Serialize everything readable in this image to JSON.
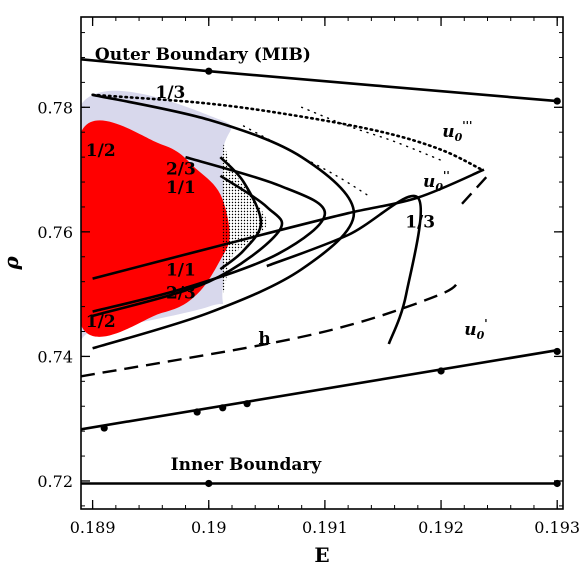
{
  "chart_data": {
    "type": "line",
    "xlabel": "E",
    "ylabel": "ρ",
    "xlim": [
      0.1889,
      0.19305
    ],
    "ylim": [
      0.7155,
      0.7945
    ],
    "x_ticks": [
      0.189,
      0.19,
      0.191,
      0.192,
      0.193
    ],
    "x_tick_labels": [
      "0.189",
      "0.19",
      "0.191",
      "0.192",
      "0.193"
    ],
    "y_ticks": [
      0.72,
      0.74,
      0.76,
      0.78
    ],
    "y_tick_labels": [
      "0.72",
      "0.74",
      "0.76",
      "0.78"
    ],
    "grid": false,
    "colors": {
      "red_region": "#ff0000",
      "lavender_region": "#d8d8ec",
      "lines": "#000000"
    },
    "regions": [
      {
        "name": "lavender",
        "x": [
          0.1889,
          0.1901,
          0.19012,
          0.19012,
          0.19,
          0.189,
          0.1889
        ],
        "y": [
          0.7804,
          0.778,
          0.772,
          0.751,
          0.748,
          0.744,
          0.744
        ]
      },
      {
        "name": "red",
        "x": [
          0.1889,
          0.1896,
          0.1899,
          0.1901,
          0.19018,
          0.1901,
          0.1899,
          0.1896,
          0.1889
        ],
        "y": [
          0.776,
          0.774,
          0.77,
          0.766,
          0.7595,
          0.7555,
          0.75,
          0.747,
          0.745
        ]
      },
      {
        "name": "dotted-region",
        "x": [
          0.19012,
          0.1902,
          0.1904,
          0.1905,
          0.1904,
          0.1902,
          0.19012
        ],
        "y": [
          0.773,
          0.77,
          0.765,
          0.7615,
          0.759,
          0.756,
          0.751
        ]
      }
    ],
    "series": [
      {
        "x": [
          0.1889,
          0.19,
          0.193
        ],
        "y": [
          0.7877,
          0.7858,
          0.781
        ],
        "style": "solid",
        "markers": [
          [
            0.19,
            0.7858
          ],
          [
            0.193,
            0.781
          ]
        ]
      },
      {
        "x": [
          0.1889,
          0.193
        ],
        "y": [
          0.7196,
          0.7196
        ],
        "style": "solid",
        "markers": [
          [
            0.19,
            0.7196
          ],
          [
            0.193,
            0.7196
          ]
        ]
      },
      {
        "x": [
          0.1889,
          0.193
        ],
        "y": [
          0.7283,
          0.741
        ],
        "style": "solid",
        "markers": [
          [
            0.1891,
            0.7285
          ],
          [
            0.1899,
            0.73107
          ],
          [
            0.19012,
            0.73175
          ],
          [
            0.19033,
            0.73241
          ],
          [
            0.192,
            0.73766
          ],
          [
            0.193,
            0.7408
          ]
        ]
      },
      {
        "x": [
          0.189,
          0.19,
          0.1908,
          0.1915,
          0.192,
          0.19235
        ],
        "y": [
          0.782,
          0.7806,
          0.7785,
          0.776,
          0.7732,
          0.77
        ],
        "style": "dotted-heavy"
      },
      {
        "x": [
          0.1889,
          0.1905,
          0.1913,
          0.192,
          0.19215
        ],
        "y": [
          0.7368,
          0.742,
          0.7455,
          0.75,
          0.752
        ],
        "style": "dashed"
      },
      {
        "x": [
          0.19218,
          0.1924
        ],
        "y": [
          0.7645,
          0.769
        ],
        "style": "dashed"
      },
      {
        "x": [
          0.189,
          0.19045,
          0.1912,
          0.1918,
          0.19237
        ],
        "y": [
          0.7525,
          0.7595,
          0.763,
          0.7655,
          0.77
        ],
        "style": "solid"
      },
      {
        "x": [
          0.189,
          0.19,
          0.1908,
          0.19125,
          0.1908,
          0.19,
          0.189
        ],
        "y": [
          0.782,
          0.778,
          0.772,
          0.763,
          0.754,
          0.747,
          0.7413
        ],
        "style": "solid"
      },
      {
        "x": [
          0.1898,
          0.1906,
          0.191,
          0.1906,
          0.1898,
          0.189
        ],
        "y": [
          0.772,
          0.7675,
          0.763,
          0.7565,
          0.751,
          0.7472
        ],
        "style": "solid"
      },
      {
        "x": [
          0.1901,
          0.1905,
          0.1906,
          0.19,
          0.189
        ],
        "y": [
          0.769,
          0.764,
          0.76,
          0.752,
          0.7465
        ],
        "style": "solid"
      },
      {
        "x": [
          0.1901,
          0.1903,
          0.19045,
          0.1903,
          0.1901
        ],
        "y": [
          0.772,
          0.768,
          0.7615,
          0.757,
          0.754
        ],
        "style": "solid"
      },
      {
        "x": [
          0.19155,
          0.1917,
          0.1918,
          0.1912,
          0.1905
        ],
        "y": [
          0.742,
          0.75,
          0.7655,
          0.7595,
          0.7545
        ],
        "style": "solid"
      },
      {
        "x": [
          0.1908,
          0.1912,
          0.1916,
          0.192
        ],
        "y": [
          0.78,
          0.777,
          0.7745,
          0.7715
        ],
        "style": "fine-dotted"
      },
      {
        "x": [
          0.1903,
          0.1907,
          0.1911,
          0.1914
        ],
        "y": [
          0.777,
          0.773,
          0.769,
          0.7655
        ],
        "style": "fine-dotted"
      }
    ],
    "annotations": [
      {
        "text": "Outer Boundary (MIB)",
        "x": 0.18995,
        "y": 0.7876
      },
      {
        "text": "Inner Boundary",
        "x": 0.19032,
        "y": 0.7218
      },
      {
        "text": "1/3",
        "x": 0.18967,
        "y": 0.7815
      },
      {
        "text": "1/2",
        "x": 0.18907,
        "y": 0.7722
      },
      {
        "text": "2/3",
        "x": 0.18976,
        "y": 0.7692
      },
      {
        "text": "1/1",
        "x": 0.18976,
        "y": 0.7662
      },
      {
        "text": "1/1",
        "x": 0.18976,
        "y": 0.753
      },
      {
        "text": "2/3",
        "x": 0.18976,
        "y": 0.7493
      },
      {
        "text": "1/2",
        "x": 0.18907,
        "y": 0.7447
      },
      {
        "text": "1/3",
        "x": 0.19182,
        "y": 0.7607
      },
      {
        "text": "h",
        "x": 0.19048,
        "y": 0.742
      },
      {
        "text": "u0'''",
        "base": "u",
        "sub": "0",
        "sup": "'''",
        "x": 0.19214,
        "y": 0.7752
      },
      {
        "text": "u0''",
        "base": "u",
        "sub": "0",
        "sup": "''",
        "x": 0.19196,
        "y": 0.7672
      },
      {
        "text": "u0'",
        "base": "u",
        "sub": "0",
        "sup": "'",
        "x": 0.1923,
        "y": 0.7434
      }
    ]
  }
}
